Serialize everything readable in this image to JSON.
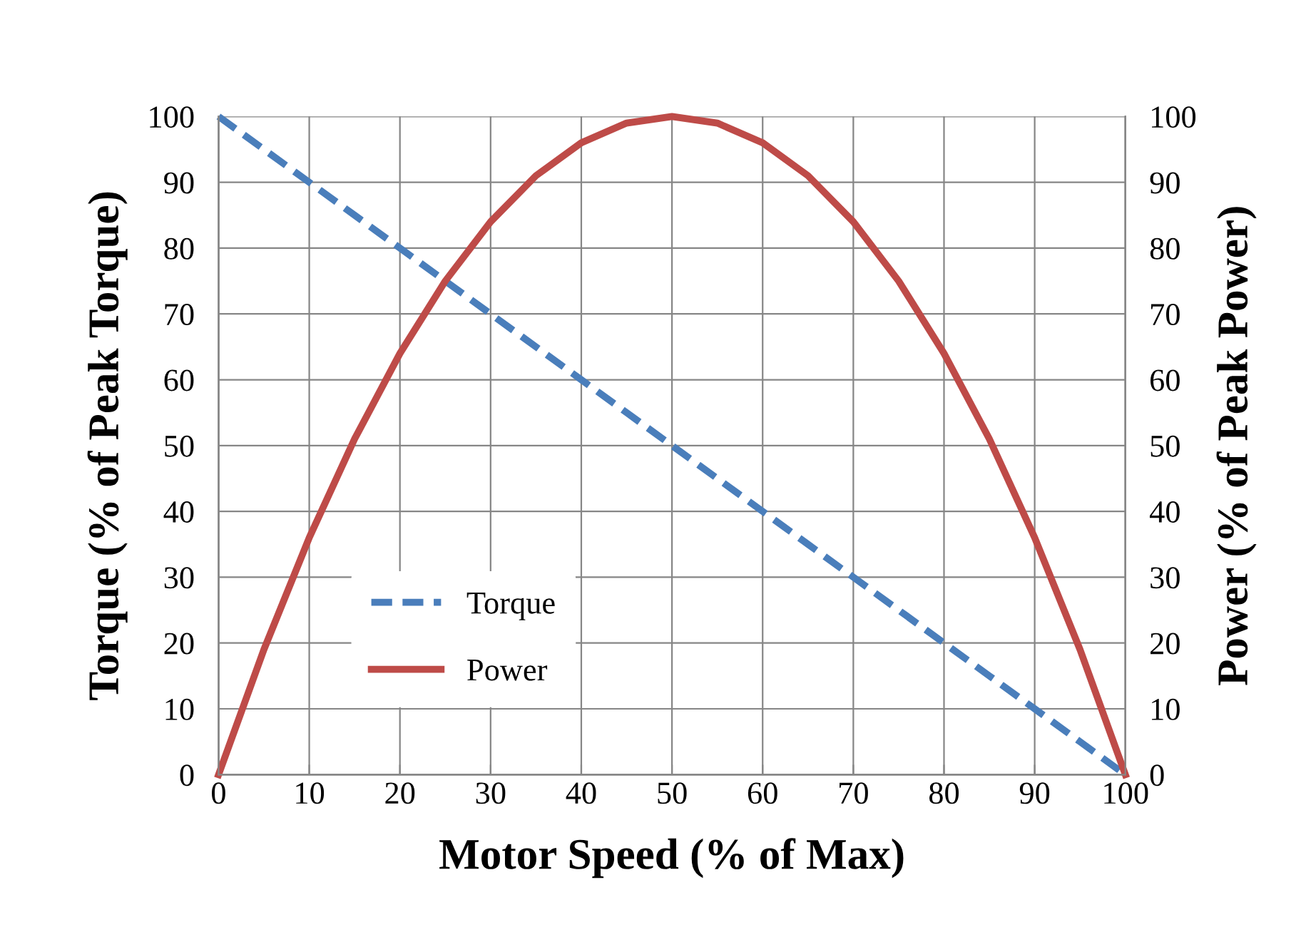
{
  "chart_data": {
    "type": "line",
    "xlabel": "Motor Speed (% of Max)",
    "ylabel": "Torque (% of Peak Torque)",
    "y2label": "Power (% of Peak Power)",
    "x": [
      0,
      5,
      10,
      15,
      20,
      25,
      30,
      35,
      40,
      45,
      50,
      55,
      60,
      65,
      70,
      75,
      80,
      85,
      90,
      95,
      100
    ],
    "series": [
      {
        "name": "Torque",
        "color": "#4a7ebb",
        "line_style": "dashed",
        "values": [
          100,
          95,
          90,
          85,
          80,
          75,
          70,
          65,
          60,
          55,
          50,
          45,
          40,
          35,
          30,
          25,
          20,
          15,
          10,
          5,
          0
        ]
      },
      {
        "name": "Power",
        "color": "#be4b48",
        "line_style": "solid",
        "axis": "y2",
        "values": [
          0,
          19,
          36,
          51,
          64,
          75,
          84,
          91,
          96,
          99,
          100,
          99,
          96,
          91,
          84,
          75,
          64,
          51,
          36,
          19,
          0
        ]
      }
    ],
    "xlim": [
      0,
      100
    ],
    "xticks": [
      0,
      10,
      20,
      30,
      40,
      50,
      60,
      70,
      80,
      90,
      100
    ],
    "ylim": [
      0,
      100
    ],
    "yticks": [
      0,
      10,
      20,
      30,
      40,
      50,
      60,
      70,
      80,
      90,
      100
    ],
    "y2lim": [
      0,
      100
    ],
    "y2ticks": [
      0,
      10,
      20,
      30,
      40,
      50,
      60,
      70,
      80,
      90,
      100
    ],
    "grid": true,
    "legend": "bottom left",
    "marker": "none"
  }
}
